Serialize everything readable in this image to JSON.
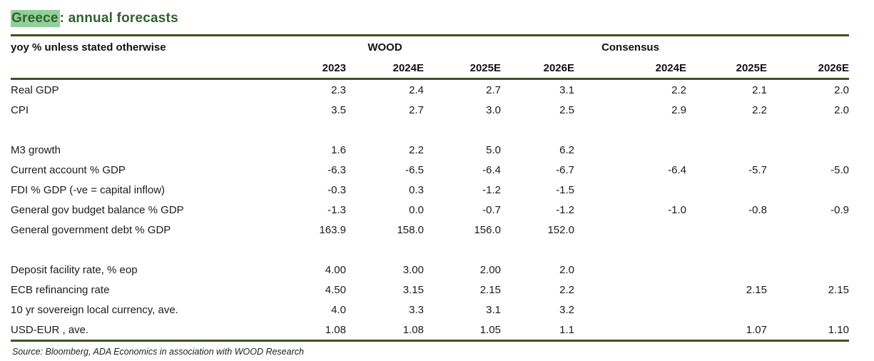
{
  "title": {
    "highlighted_word": "Greece",
    "rest": ": annual forecasts"
  },
  "colors": {
    "title_green": "#2f6230",
    "highlight_green": "#93cf98",
    "rule_green": "#42511f"
  },
  "table": {
    "unit_header": "yoy % unless stated otherwise",
    "group_headers": {
      "wood": "WOOD",
      "consensus": "Consensus"
    },
    "year_headers": [
      "2023",
      "2024E",
      "2025E",
      "2026E",
      "2024E",
      "2025E",
      "2026E"
    ],
    "rows": [
      {
        "label": "Real GDP",
        "values": [
          "2.3",
          "2.4",
          "2.7",
          "3.1",
          "2.2",
          "2.1",
          "2.0"
        ]
      },
      {
        "label": "CPI",
        "values": [
          "3.5",
          "2.7",
          "3.0",
          "2.5",
          "2.9",
          "2.2",
          "2.0"
        ]
      },
      {
        "label": "",
        "values": [
          "",
          "",
          "",
          "",
          "",
          "",
          ""
        ]
      },
      {
        "label": "M3 growth",
        "values": [
          "1.6",
          "2.2",
          "5.0",
          "6.2",
          "",
          "",
          ""
        ]
      },
      {
        "label": "Current account % GDP",
        "values": [
          "-6.3",
          "-6.5",
          "-6.4",
          "-6.7",
          "-6.4",
          "-5.7",
          "-5.0"
        ]
      },
      {
        "label": "FDI % GDP (-ve = capital inflow)",
        "values": [
          "-0.3",
          "0.3",
          "-1.2",
          "-1.5",
          "",
          "",
          ""
        ]
      },
      {
        "label": "General gov budget balance % GDP",
        "values": [
          "-1.3",
          "0.0",
          "-0.7",
          "-1.2",
          "-1.0",
          "-0.8",
          "-0.9"
        ]
      },
      {
        "label": "General government debt % GDP",
        "values": [
          "163.9",
          "158.0",
          "156.0",
          "152.0",
          "",
          "",
          ""
        ]
      },
      {
        "label": "",
        "values": [
          "",
          "",
          "",
          "",
          "",
          "",
          ""
        ]
      },
      {
        "label": "Deposit facility rate, % eop",
        "values": [
          "4.00",
          "3.00",
          "2.00",
          "2.0",
          "",
          "",
          ""
        ]
      },
      {
        "label": "ECB refinancing rate",
        "values": [
          "4.50",
          "3.15",
          "2.15",
          "2.2",
          "",
          "2.15",
          "2.15"
        ]
      },
      {
        "label": "10 yr sovereign local currency, ave.",
        "values": [
          "4.0",
          "3.3",
          "3.1",
          "3.2",
          "",
          "",
          ""
        ]
      },
      {
        "label": "USD-EUR , ave.",
        "values": [
          "1.08",
          "1.08",
          "1.05",
          "1.1",
          "",
          "1.07",
          "1.10"
        ]
      }
    ]
  },
  "source": "Source: Bloomberg, ADA Economics in association with WOOD Research"
}
